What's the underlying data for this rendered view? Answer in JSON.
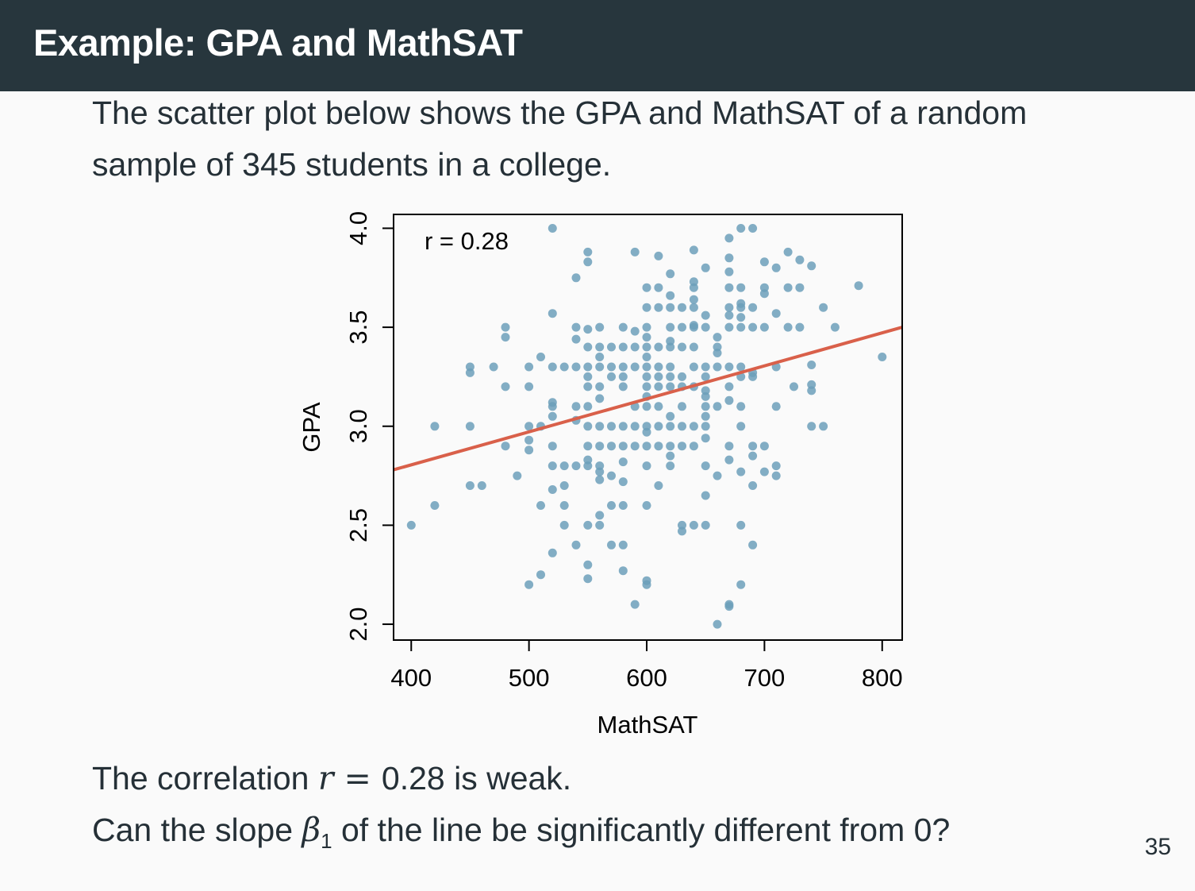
{
  "slide": {
    "title": "Example: GPA and MathSAT",
    "intro": "The scatter plot below shows the GPA and MathSAT of a random sample of 345 students in a college.",
    "line1_prefix": "The correlation ",
    "line1_var": "r",
    "line1_eq": " = ",
    "line1_value": "0.28",
    "line1_suffix": " is weak.",
    "line2_prefix": "Can the slope ",
    "line2_var": "β",
    "line2_sub": "1",
    "line2_suffix": " of the line be significantly different from 0?",
    "page_number": "35"
  },
  "chart_data": {
    "type": "scatter",
    "xlabel": "MathSAT",
    "ylabel": "GPA",
    "xlim": [
      385,
      817
    ],
    "ylim": [
      1.92,
      4.07
    ],
    "xticks": [
      400,
      500,
      600,
      700,
      800
    ],
    "yticks": [
      2.0,
      2.5,
      3.0,
      3.5,
      4.0
    ],
    "xtick_labels": [
      "400",
      "500",
      "600",
      "700",
      "800"
    ],
    "ytick_labels": [
      "2.0",
      "2.5",
      "3.0",
      "3.5",
      "4.0"
    ],
    "annotation": "r = 0.28",
    "grid": false,
    "point_color": "#6c9fba",
    "line_color": "#d9604a",
    "regression_line": {
      "x": [
        385,
        817
      ],
      "y": [
        2.78,
        3.5
      ]
    },
    "points": [
      [
        400,
        2.5
      ],
      [
        420,
        3.0
      ],
      [
        420,
        2.6
      ],
      [
        450,
        3.3
      ],
      [
        450,
        3.27
      ],
      [
        450,
        3.0
      ],
      [
        450,
        2.7
      ],
      [
        460,
        2.7
      ],
      [
        470,
        3.3
      ],
      [
        480,
        3.5
      ],
      [
        480,
        3.45
      ],
      [
        480,
        3.2
      ],
      [
        480,
        2.9
      ],
      [
        490,
        2.75
      ],
      [
        500,
        3.3
      ],
      [
        500,
        3.2
      ],
      [
        500,
        3.0
      ],
      [
        500,
        2.93
      ],
      [
        500,
        2.88
      ],
      [
        500,
        2.2
      ],
      [
        510,
        3.35
      ],
      [
        510,
        3.0
      ],
      [
        510,
        2.6
      ],
      [
        510,
        2.25
      ],
      [
        520,
        4.0
      ],
      [
        520,
        3.57
      ],
      [
        520,
        3.3
      ],
      [
        520,
        3.12
      ],
      [
        520,
        3.1
      ],
      [
        520,
        3.05
      ],
      [
        520,
        2.9
      ],
      [
        520,
        2.8
      ],
      [
        520,
        2.68
      ],
      [
        520,
        2.36
      ],
      [
        530,
        3.3
      ],
      [
        530,
        2.8
      ],
      [
        530,
        2.7
      ],
      [
        530,
        2.6
      ],
      [
        530,
        2.5
      ],
      [
        540,
        3.75
      ],
      [
        540,
        3.5
      ],
      [
        540,
        3.44
      ],
      [
        540,
        3.3
      ],
      [
        540,
        3.1
      ],
      [
        540,
        3.03
      ],
      [
        540,
        2.8
      ],
      [
        540,
        2.4
      ],
      [
        550,
        3.88
      ],
      [
        550,
        3.83
      ],
      [
        550,
        3.49
      ],
      [
        550,
        3.4
      ],
      [
        550,
        3.3
      ],
      [
        550,
        3.25
      ],
      [
        550,
        3.2
      ],
      [
        550,
        3.1
      ],
      [
        550,
        3.0
      ],
      [
        550,
        2.9
      ],
      [
        550,
        2.83
      ],
      [
        550,
        2.8
      ],
      [
        550,
        2.5
      ],
      [
        550,
        2.3
      ],
      [
        550,
        2.23
      ],
      [
        560,
        3.5
      ],
      [
        560,
        3.4
      ],
      [
        560,
        3.35
      ],
      [
        560,
        3.3
      ],
      [
        560,
        3.2
      ],
      [
        560,
        3.14
      ],
      [
        560,
        3.0
      ],
      [
        560,
        2.9
      ],
      [
        560,
        2.8
      ],
      [
        560,
        2.77
      ],
      [
        560,
        2.73
      ],
      [
        560,
        2.55
      ],
      [
        560,
        2.5
      ],
      [
        570,
        3.4
      ],
      [
        570,
        3.3
      ],
      [
        570,
        3.25
      ],
      [
        570,
        3.0
      ],
      [
        570,
        2.9
      ],
      [
        570,
        2.75
      ],
      [
        570,
        2.6
      ],
      [
        570,
        2.4
      ],
      [
        580,
        3.5
      ],
      [
        580,
        3.4
      ],
      [
        580,
        3.3
      ],
      [
        580,
        3.25
      ],
      [
        580,
        3.2
      ],
      [
        580,
        3.0
      ],
      [
        580,
        2.9
      ],
      [
        580,
        2.82
      ],
      [
        580,
        2.72
      ],
      [
        580,
        2.6
      ],
      [
        580,
        2.4
      ],
      [
        580,
        2.27
      ],
      [
        590,
        3.88
      ],
      [
        590,
        3.48
      ],
      [
        590,
        3.4
      ],
      [
        590,
        3.3
      ],
      [
        590,
        3.1
      ],
      [
        590,
        3.0
      ],
      [
        590,
        2.9
      ],
      [
        590,
        2.1
      ],
      [
        600,
        3.7
      ],
      [
        600,
        3.6
      ],
      [
        600,
        3.5
      ],
      [
        600,
        3.45
      ],
      [
        600,
        3.4
      ],
      [
        600,
        3.35
      ],
      [
        600,
        3.3
      ],
      [
        600,
        3.25
      ],
      [
        600,
        3.2
      ],
      [
        600,
        3.15
      ],
      [
        600,
        3.1
      ],
      [
        600,
        3.0
      ],
      [
        600,
        2.97
      ],
      [
        600,
        2.9
      ],
      [
        600,
        2.8
      ],
      [
        600,
        2.6
      ],
      [
        600,
        2.22
      ],
      [
        600,
        2.2
      ],
      [
        610,
        3.86
      ],
      [
        610,
        3.7
      ],
      [
        610,
        3.6
      ],
      [
        610,
        3.4
      ],
      [
        610,
        3.3
      ],
      [
        610,
        3.25
      ],
      [
        610,
        3.2
      ],
      [
        610,
        3.1
      ],
      [
        610,
        3.0
      ],
      [
        610,
        2.9
      ],
      [
        610,
        2.7
      ],
      [
        620,
        3.77
      ],
      [
        620,
        3.66
      ],
      [
        620,
        3.6
      ],
      [
        620,
        3.5
      ],
      [
        620,
        3.43
      ],
      [
        620,
        3.4
      ],
      [
        620,
        3.3
      ],
      [
        620,
        3.25
      ],
      [
        620,
        3.2
      ],
      [
        620,
        3.05
      ],
      [
        620,
        3.0
      ],
      [
        620,
        2.9
      ],
      [
        620,
        2.85
      ],
      [
        620,
        2.8
      ],
      [
        630,
        3.6
      ],
      [
        630,
        3.5
      ],
      [
        630,
        3.4
      ],
      [
        630,
        3.25
      ],
      [
        630,
        3.2
      ],
      [
        630,
        3.1
      ],
      [
        630,
        3.0
      ],
      [
        630,
        2.9
      ],
      [
        630,
        2.5
      ],
      [
        630,
        2.47
      ],
      [
        640,
        3.89
      ],
      [
        640,
        3.73
      ],
      [
        640,
        3.7
      ],
      [
        640,
        3.64
      ],
      [
        640,
        3.6
      ],
      [
        640,
        3.51
      ],
      [
        640,
        3.5
      ],
      [
        640,
        3.4
      ],
      [
        640,
        3.3
      ],
      [
        640,
        3.2
      ],
      [
        640,
        3.0
      ],
      [
        640,
        2.9
      ],
      [
        640,
        2.5
      ],
      [
        650,
        3.8
      ],
      [
        650,
        3.56
      ],
      [
        650,
        3.5
      ],
      [
        650,
        3.3
      ],
      [
        650,
        3.25
      ],
      [
        650,
        3.18
      ],
      [
        650,
        3.15
      ],
      [
        650,
        3.1
      ],
      [
        650,
        3.05
      ],
      [
        650,
        3.0
      ],
      [
        650,
        2.94
      ],
      [
        650,
        2.8
      ],
      [
        650,
        2.65
      ],
      [
        650,
        2.5
      ],
      [
        660,
        3.45
      ],
      [
        660,
        3.4
      ],
      [
        660,
        3.37
      ],
      [
        660,
        3.3
      ],
      [
        660,
        3.1
      ],
      [
        660,
        2.75
      ],
      [
        660,
        2.0
      ],
      [
        670,
        3.95
      ],
      [
        670,
        3.85
      ],
      [
        670,
        3.78
      ],
      [
        670,
        3.7
      ],
      [
        670,
        3.6
      ],
      [
        670,
        3.56
      ],
      [
        670,
        3.5
      ],
      [
        670,
        3.3
      ],
      [
        670,
        3.2
      ],
      [
        670,
        3.13
      ],
      [
        670,
        2.9
      ],
      [
        670,
        2.83
      ],
      [
        670,
        2.1
      ],
      [
        670,
        2.09
      ],
      [
        680,
        4.0
      ],
      [
        680,
        3.7
      ],
      [
        680,
        3.62
      ],
      [
        680,
        3.6
      ],
      [
        680,
        3.55
      ],
      [
        680,
        3.5
      ],
      [
        680,
        3.3
      ],
      [
        680,
        3.25
      ],
      [
        680,
        3.1
      ],
      [
        680,
        3.0
      ],
      [
        680,
        2.77
      ],
      [
        680,
        2.5
      ],
      [
        680,
        2.2
      ],
      [
        690,
        4.0
      ],
      [
        690,
        3.6
      ],
      [
        690,
        3.5
      ],
      [
        690,
        3.27
      ],
      [
        690,
        3.25
      ],
      [
        690,
        2.9
      ],
      [
        690,
        2.85
      ],
      [
        690,
        2.7
      ],
      [
        690,
        2.4
      ],
      [
        700,
        3.83
      ],
      [
        700,
        3.7
      ],
      [
        700,
        3.67
      ],
      [
        700,
        3.5
      ],
      [
        700,
        2.9
      ],
      [
        700,
        2.77
      ],
      [
        710,
        3.8
      ],
      [
        710,
        3.57
      ],
      [
        710,
        3.3
      ],
      [
        710,
        3.1
      ],
      [
        710,
        2.8
      ],
      [
        710,
        2.75
      ],
      [
        720,
        3.88
      ],
      [
        720,
        3.7
      ],
      [
        720,
        3.5
      ],
      [
        725,
        3.2
      ],
      [
        730,
        3.84
      ],
      [
        730,
        3.7
      ],
      [
        730,
        3.5
      ],
      [
        740,
        3.81
      ],
      [
        740,
        3.31
      ],
      [
        740,
        3.21
      ],
      [
        740,
        3.18
      ],
      [
        740,
        3.0
      ],
      [
        750,
        3.6
      ],
      [
        750,
        3.0
      ],
      [
        760,
        3.5
      ],
      [
        780,
        3.71
      ],
      [
        800,
        3.35
      ]
    ]
  }
}
